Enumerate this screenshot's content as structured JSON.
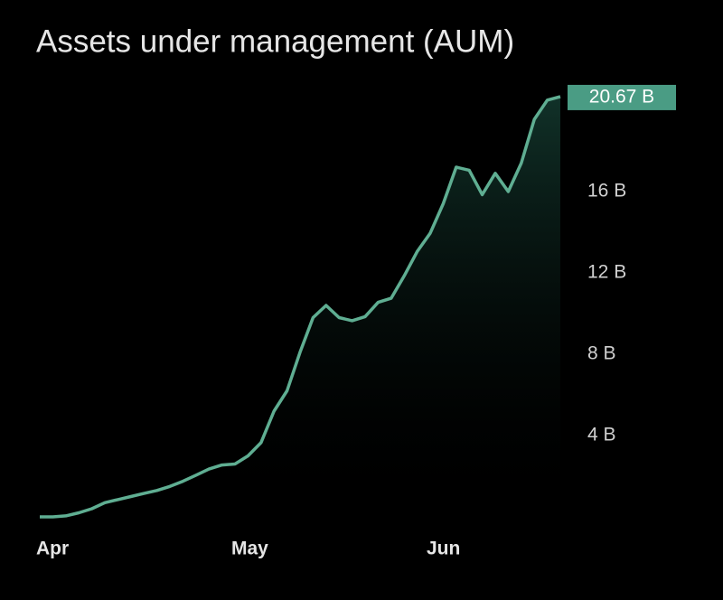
{
  "chart_data": {
    "type": "area",
    "title": "Assets under management (AUM)",
    "categories": [
      "Apr",
      null,
      null,
      null,
      null,
      null,
      null,
      null,
      null,
      null,
      null,
      null,
      null,
      null,
      null,
      "May",
      null,
      null,
      null,
      null,
      null,
      null,
      null,
      null,
      null,
      null,
      null,
      null,
      null,
      null,
      "Jun",
      null,
      null,
      null,
      null,
      null,
      null,
      null,
      null,
      null,
      null
    ],
    "series": [
      {
        "color": "#5fae92",
        "values": [
          0,
          0,
          0.05,
          0.2,
          0.4,
          0.7,
          0.85,
          1.0,
          1.15,
          1.3,
          1.5,
          1.75,
          2.05,
          2.35,
          2.55,
          2.6,
          3.0,
          3.65,
          5.2,
          6.2,
          8.1,
          9.8,
          10.4,
          9.8,
          9.65,
          9.85,
          10.55,
          10.75,
          11.85,
          13.05,
          13.95,
          15.4,
          17.2,
          17.05,
          15.85,
          16.9,
          16.0,
          17.4,
          19.55,
          20.5,
          20.67
        ]
      }
    ],
    "ylim": [
      0,
      21
    ],
    "yticks": [
      {
        "value": 4,
        "label": "4 B"
      },
      {
        "value": 8,
        "label": "8 B"
      },
      {
        "value": 12,
        "label": "12 B"
      },
      {
        "value": 16,
        "label": "16 B"
      }
    ],
    "last_value": {
      "value": 20.67,
      "label": "20.67 B"
    },
    "tag_color": "#4a9c84"
  }
}
